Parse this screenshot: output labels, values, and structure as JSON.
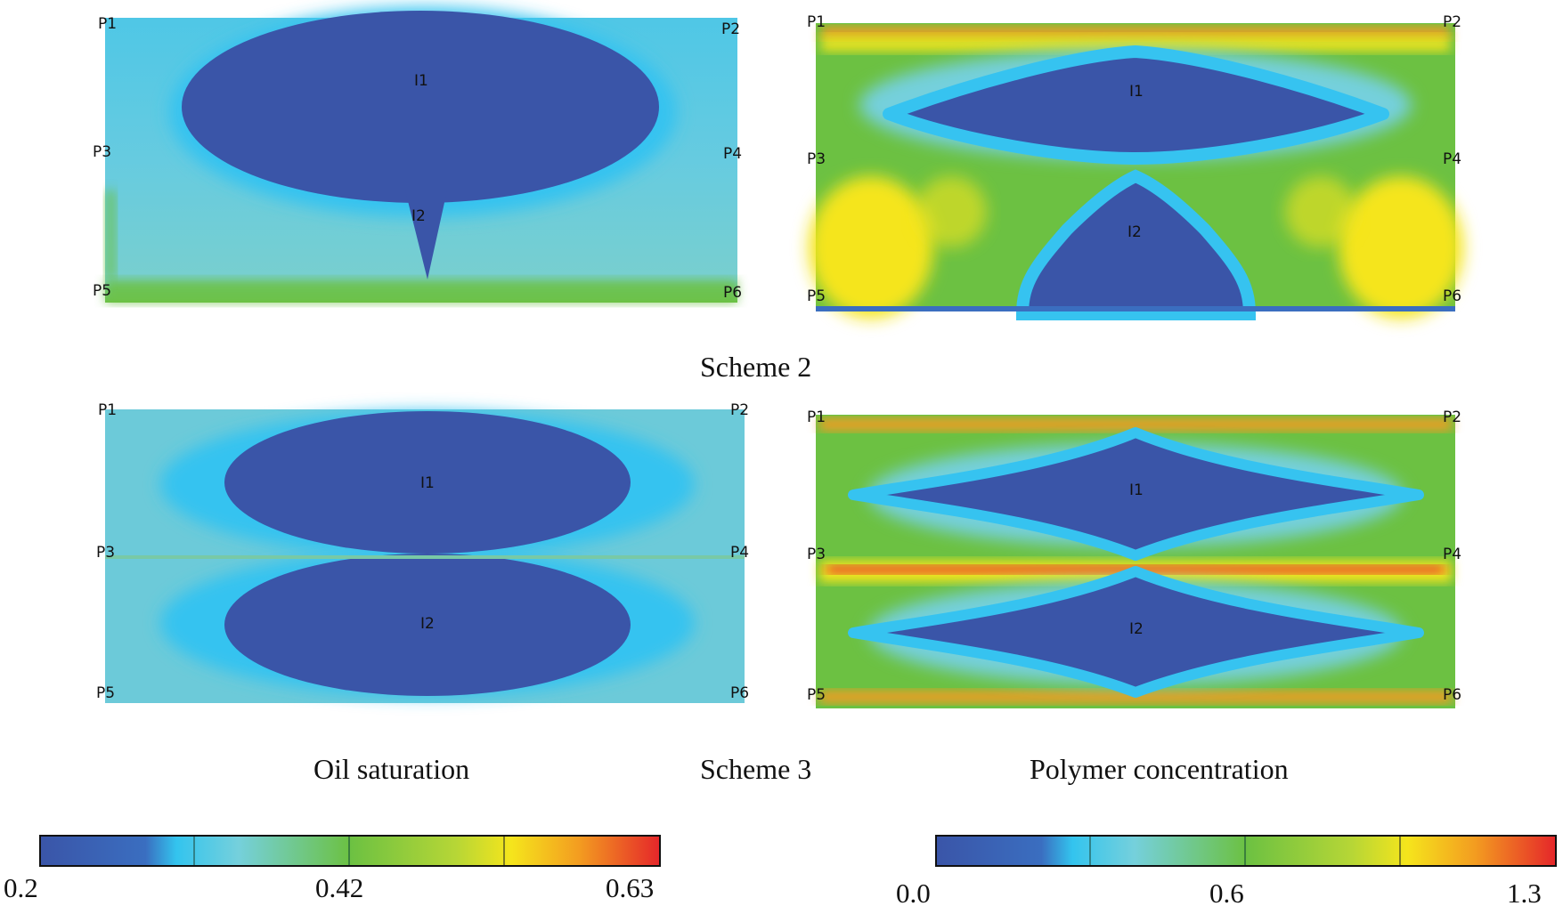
{
  "panels": [
    {
      "id": "s2-oil",
      "wells": [
        "P1",
        "P2",
        "P3",
        "P4",
        "P5",
        "P6",
        "I1",
        "I2"
      ]
    },
    {
      "id": "s2-polymer",
      "wells": [
        "P1",
        "P2",
        "P3",
        "P4",
        "P5",
        "P6",
        "I1",
        "I2"
      ]
    },
    {
      "id": "s3-oil",
      "wells": [
        "P1",
        "P2",
        "P3",
        "P4",
        "P5",
        "P6",
        "I1",
        "I2"
      ]
    },
    {
      "id": "s3-polymer",
      "wells": [
        "P1",
        "P2",
        "P3",
        "P4",
        "P5",
        "P6",
        "I1",
        "I2"
      ]
    }
  ],
  "captions": {
    "scheme2": "Scheme 2",
    "scheme3": "Scheme 3",
    "oil": "Oil saturation",
    "polymer": "Polymer concentration"
  },
  "colorbars": {
    "oil": {
      "min": "0.2",
      "mid": "0.42",
      "max": "0.63"
    },
    "polymer": {
      "min": "0.0",
      "mid": "0.6",
      "max": "1.3"
    }
  },
  "colors": {
    "dark_blue": "#3a55a8",
    "cyan": "#33c4ee",
    "light_cyan": "#75d0dc",
    "green": "#6cc142",
    "yellow": "#f5e51c",
    "orange": "#f39c20",
    "red": "#e5262a"
  }
}
